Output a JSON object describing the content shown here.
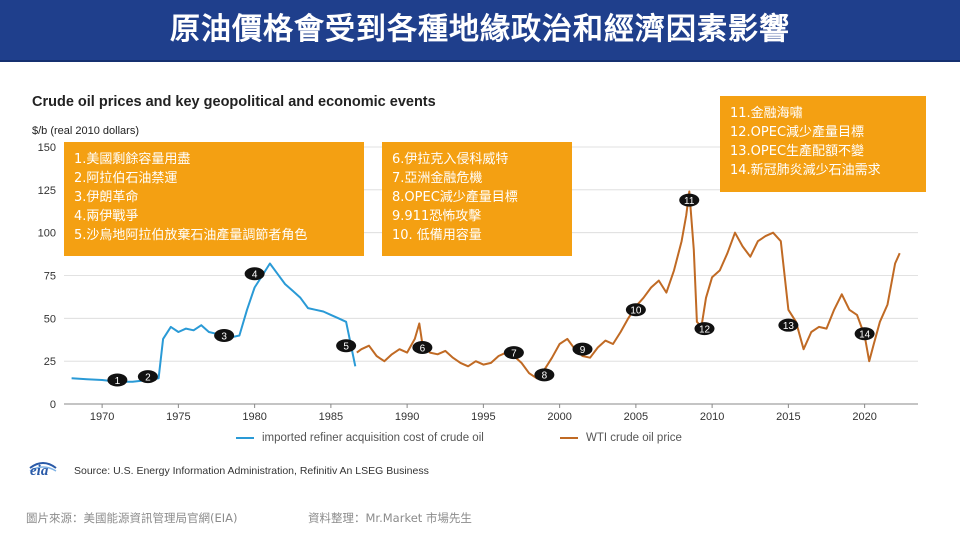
{
  "header": {
    "title": "原油價格會受到各種地緣政治和經濟因素影響"
  },
  "chart_data": {
    "type": "line",
    "title": "Crude oil prices and key geopolitical and economic events",
    "ylabel": "$/b (real 2010 dollars)",
    "xlabel": "",
    "xlim": [
      1967.5,
      2023.5
    ],
    "ylim": [
      0,
      150
    ],
    "yticks": [
      0,
      25,
      50,
      75,
      100,
      125,
      150
    ],
    "xticks": [
      1970,
      1975,
      1980,
      1985,
      1990,
      1995,
      2000,
      2005,
      2010,
      2015,
      2020
    ],
    "grid": "horizontal",
    "legend": "bottom",
    "series": [
      {
        "name": "imported refiner acquisition cost of crude oil",
        "color": "#2a9ad6",
        "points": [
          [
            1968,
            15
          ],
          [
            1969,
            14.5
          ],
          [
            1970,
            14
          ],
          [
            1971,
            13
          ],
          [
            1972,
            13
          ],
          [
            1973,
            14
          ],
          [
            1973.7,
            15
          ],
          [
            1974,
            38
          ],
          [
            1974.5,
            45
          ],
          [
            1975,
            42
          ],
          [
            1975.5,
            44
          ],
          [
            1976,
            43
          ],
          [
            1976.5,
            46
          ],
          [
            1977,
            42
          ],
          [
            1977.5,
            41
          ],
          [
            1978,
            40
          ],
          [
            1978.5,
            39
          ],
          [
            1979,
            40
          ],
          [
            1979.5,
            55
          ],
          [
            1980,
            68
          ],
          [
            1980.5,
            75
          ],
          [
            1981,
            82
          ],
          [
            1981.5,
            76
          ],
          [
            1982,
            70
          ],
          [
            1982.5,
            66
          ],
          [
            1983,
            62
          ],
          [
            1983.5,
            56
          ],
          [
            1984,
            55
          ],
          [
            1984.5,
            54
          ],
          [
            1985,
            52
          ],
          [
            1985.5,
            50
          ],
          [
            1986,
            48
          ],
          [
            1986.3,
            35
          ],
          [
            1986.6,
            22
          ]
        ]
      },
      {
        "name": "WTI crude oil price",
        "color": "#c06a24",
        "points": [
          [
            1986.7,
            30
          ],
          [
            1987,
            32
          ],
          [
            1987.5,
            34
          ],
          [
            1988,
            28
          ],
          [
            1988.5,
            25
          ],
          [
            1989,
            29
          ],
          [
            1989.5,
            32
          ],
          [
            1990,
            30
          ],
          [
            1990.5,
            38
          ],
          [
            1990.8,
            47
          ],
          [
            1991,
            35
          ],
          [
            1991.5,
            30
          ],
          [
            1992,
            29
          ],
          [
            1992.5,
            31
          ],
          [
            1993,
            27
          ],
          [
            1993.5,
            24
          ],
          [
            1994,
            22
          ],
          [
            1994.5,
            25
          ],
          [
            1995,
            23
          ],
          [
            1995.5,
            24
          ],
          [
            1996,
            28
          ],
          [
            1996.5,
            30
          ],
          [
            1997,
            28
          ],
          [
            1997.5,
            24
          ],
          [
            1998,
            18
          ],
          [
            1998.5,
            15
          ],
          [
            1999,
            20
          ],
          [
            1999.5,
            27
          ],
          [
            2000,
            35
          ],
          [
            2000.5,
            38
          ],
          [
            2001,
            32
          ],
          [
            2001.5,
            28
          ],
          [
            2002,
            27
          ],
          [
            2002.5,
            33
          ],
          [
            2003,
            37
          ],
          [
            2003.5,
            35
          ],
          [
            2004,
            42
          ],
          [
            2004.5,
            50
          ],
          [
            2005,
            57
          ],
          [
            2005.5,
            62
          ],
          [
            2006,
            68
          ],
          [
            2006.5,
            72
          ],
          [
            2007,
            65
          ],
          [
            2007.5,
            78
          ],
          [
            2008,
            95
          ],
          [
            2008.3,
            110
          ],
          [
            2008.5,
            124
          ],
          [
            2008.8,
            90
          ],
          [
            2009,
            48
          ],
          [
            2009.3,
            45
          ],
          [
            2009.6,
            62
          ],
          [
            2010,
            74
          ],
          [
            2010.5,
            78
          ],
          [
            2011,
            88
          ],
          [
            2011.5,
            100
          ],
          [
            2012,
            92
          ],
          [
            2012.5,
            86
          ],
          [
            2013,
            95
          ],
          [
            2013.5,
            98
          ],
          [
            2014,
            100
          ],
          [
            2014.5,
            95
          ],
          [
            2015,
            55
          ],
          [
            2015.5,
            48
          ],
          [
            2016,
            32
          ],
          [
            2016.5,
            42
          ],
          [
            2017,
            45
          ],
          [
            2017.5,
            44
          ],
          [
            2018,
            55
          ],
          [
            2018.5,
            64
          ],
          [
            2019,
            55
          ],
          [
            2019.5,
            52
          ],
          [
            2020,
            40
          ],
          [
            2020.3,
            25
          ],
          [
            2020.6,
            35
          ],
          [
            2021,
            48
          ],
          [
            2021.5,
            58
          ],
          [
            2022,
            82
          ],
          [
            2022.3,
            88
          ]
        ]
      }
    ],
    "events": [
      {
        "label": "1",
        "x": 1971,
        "y": 14
      },
      {
        "label": "2",
        "x": 1973,
        "y": 16
      },
      {
        "label": "3",
        "x": 1978,
        "y": 40
      },
      {
        "label": "4",
        "x": 1980,
        "y": 76
      },
      {
        "label": "5",
        "x": 1986,
        "y": 34
      },
      {
        "label": "6",
        "x": 1991,
        "y": 33
      },
      {
        "label": "7",
        "x": 1997,
        "y": 30
      },
      {
        "label": "8",
        "x": 1999,
        "y": 17
      },
      {
        "label": "9",
        "x": 2001.5,
        "y": 32
      },
      {
        "label": "10",
        "x": 2005,
        "y": 55
      },
      {
        "label": "11",
        "x": 2008.5,
        "y": 119
      },
      {
        "label": "12",
        "x": 2009.5,
        "y": 44
      },
      {
        "label": "13",
        "x": 2015,
        "y": 46
      },
      {
        "label": "14",
        "x": 2020,
        "y": 41
      }
    ]
  },
  "notes": [
    {
      "items": [
        "1.美國剩餘容量用盡",
        "2.阿拉伯石油禁運",
        "3.伊朗革命",
        "4.兩伊戰爭",
        "5.沙烏地阿拉伯放棄石油產量調節者角色"
      ]
    },
    {
      "items": [
        "6.伊拉克入侵科威特",
        "7.亞洲金融危機",
        "8.OPEC減少產量目標",
        "9.911恐怖攻擊",
        "10. 低備用容量"
      ]
    },
    {
      "items": [
        "11.金融海嘯",
        "12.OPEC減少產量目標",
        "13.OPEC生產配額不變",
        "14.新冠肺炎減少石油需求"
      ]
    }
  ],
  "source": {
    "logo_text": "eia",
    "text": "Source: U.S. Energy Information Administration, Refinitiv An LSEG Business"
  },
  "footer": {
    "left": "圖片來源：美國能源資訊管理局官網(EIA)",
    "right": "資料整理：Mr.Market  市場先生"
  }
}
